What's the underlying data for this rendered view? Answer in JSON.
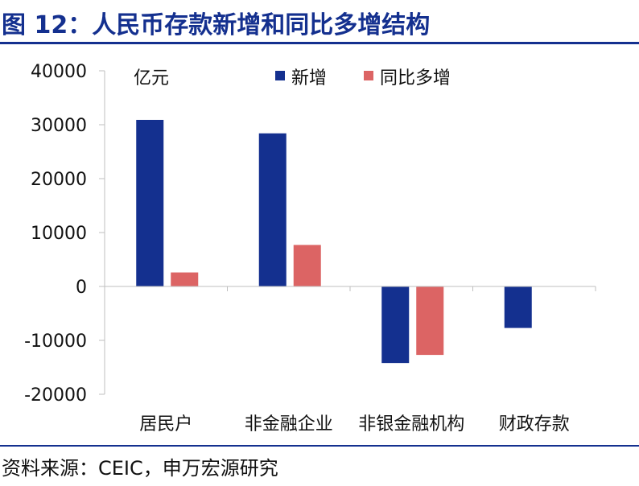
{
  "title": "图 12：人民币存款新增和同比多增结构",
  "source": "资料来源：CEIC，申万宏源研究",
  "chart_data": {
    "type": "bar",
    "unit_label": "亿元",
    "categories": [
      "居民户",
      "非金融企业",
      "非银金融机构",
      "财政存款"
    ],
    "series": [
      {
        "name": "新增",
        "color": "#14308f",
        "values": [
          30900,
          28400,
          -14200,
          -7700
        ]
      },
      {
        "name": "同比多增",
        "color": "#dc6464",
        "values": [
          2600,
          7700,
          -12700,
          null
        ]
      }
    ],
    "ylim": [
      -20000,
      40000
    ],
    "yticks": [
      40000,
      30000,
      20000,
      10000,
      0,
      -10000,
      -20000
    ],
    "legend_position": "top",
    "grid": false
  }
}
